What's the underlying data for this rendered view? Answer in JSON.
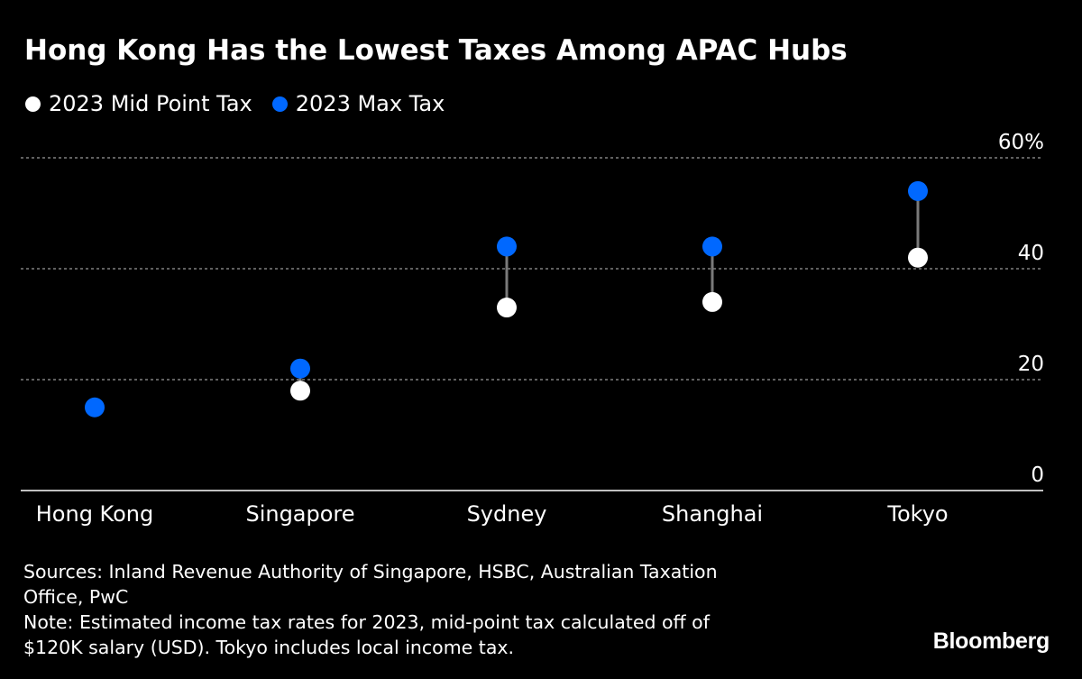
{
  "header": {
    "title": "Hong Kong Has the Lowest Taxes Among APAC Hubs"
  },
  "chart_data": {
    "type": "dot",
    "title": "Hong Kong Has the Lowest Taxes Among APAC Hubs",
    "categories": [
      "Hong Kong",
      "Singapore",
      "Sydney",
      "Shanghai",
      "Tokyo"
    ],
    "series": [
      {
        "name": "2023 Mid Point Tax",
        "color": "#ffffff",
        "values": [
          null,
          18,
          33,
          34,
          42
        ]
      },
      {
        "name": "2023 Max Tax",
        "color": "#0068ff",
        "values": [
          15,
          22,
          44,
          44,
          54
        ]
      }
    ],
    "ylim": [
      0,
      60
    ],
    "yticks": [
      0,
      20,
      40,
      60
    ],
    "ytick_labels": [
      "0",
      "20",
      "40",
      "60%"
    ],
    "grid": true,
    "xlabel": "",
    "ylabel": "",
    "legend": "top-left"
  },
  "footer": {
    "sources_line1": "Sources: Inland Revenue Authority of Singapore, HSBC, Australian Taxation",
    "sources_line2": "Office, PwC",
    "note_line1": "Note: Estimated income tax rates for 2023, mid-point tax calculated off of",
    "note_line2": "$120K salary (USD). Tokyo includes local income tax.",
    "brand": "Bloomberg"
  },
  "colors": {
    "background": "#000000",
    "text": "#ffffff",
    "mid_point": "#ffffff",
    "max_tax": "#0068ff",
    "gridline": "#9a9a9a",
    "connector": "#7a7a7a",
    "axis": "#ffffff"
  }
}
